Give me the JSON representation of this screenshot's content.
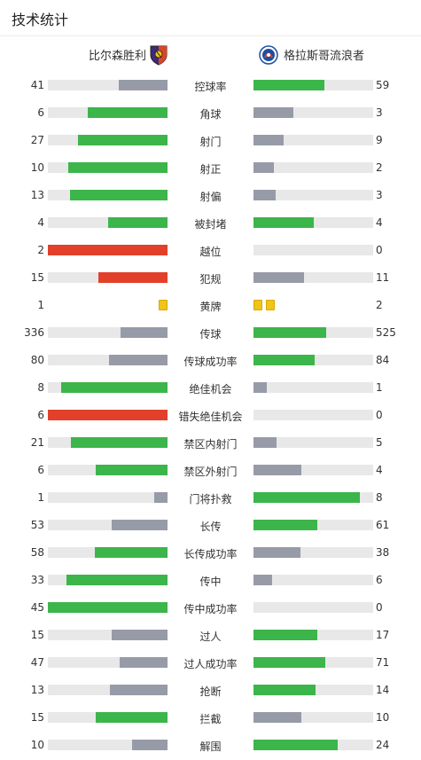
{
  "page": {
    "title": "技术统计"
  },
  "teams": {
    "home": "比尔森胜利",
    "away": "格拉斯哥流浪者"
  },
  "colors": {
    "winner": "#3cb54a",
    "loser": "#979ba8",
    "red": "#e2402a",
    "track": "#e8e8e8",
    "yellow": "#f0c419"
  },
  "stats": [
    {
      "label": "控球率",
      "home": 41,
      "away": 59,
      "home_color": "gray",
      "away_color": "green"
    },
    {
      "label": "角球",
      "home": 6,
      "away": 3,
      "home_color": "green",
      "away_color": "gray"
    },
    {
      "label": "射门",
      "home": 27,
      "away": 9,
      "home_color": "green",
      "away_color": "gray"
    },
    {
      "label": "射正",
      "home": 10,
      "away": 2,
      "home_color": "green",
      "away_color": "gray"
    },
    {
      "label": "射偏",
      "home": 13,
      "away": 3,
      "home_color": "green",
      "away_color": "gray"
    },
    {
      "label": "被封堵",
      "home": 4,
      "away": 4,
      "home_color": "green",
      "away_color": "green"
    },
    {
      "label": "越位",
      "home": 2,
      "away": 0,
      "home_color": "red",
      "away_color": "gray"
    },
    {
      "label": "犯规",
      "home": 15,
      "away": 11,
      "home_color": "red",
      "away_color": "gray"
    },
    {
      "label": "黄牌",
      "home": 1,
      "away": 2,
      "type": "cards"
    },
    {
      "label": "传球",
      "home": 336,
      "away": 525,
      "home_color": "gray",
      "away_color": "green"
    },
    {
      "label": "传球成功率",
      "home": 80,
      "away": 84,
      "home_color": "gray",
      "away_color": "green"
    },
    {
      "label": "绝佳机会",
      "home": 8,
      "away": 1,
      "home_color": "green",
      "away_color": "gray"
    },
    {
      "label": "错失绝佳机会",
      "home": 6,
      "away": 0,
      "home_color": "red",
      "away_color": "gray"
    },
    {
      "label": "禁区内射门",
      "home": 21,
      "away": 5,
      "home_color": "green",
      "away_color": "gray"
    },
    {
      "label": "禁区外射门",
      "home": 6,
      "away": 4,
      "home_color": "green",
      "away_color": "gray"
    },
    {
      "label": "门将扑救",
      "home": 1,
      "away": 8,
      "home_color": "gray",
      "away_color": "green"
    },
    {
      "label": "长传",
      "home": 53,
      "away": 61,
      "home_color": "gray",
      "away_color": "green"
    },
    {
      "label": "长传成功率",
      "home": 58,
      "away": 38,
      "home_color": "green",
      "away_color": "gray"
    },
    {
      "label": "传中",
      "home": 33,
      "away": 6,
      "home_color": "green",
      "away_color": "gray"
    },
    {
      "label": "传中成功率",
      "home": 45,
      "away": 0,
      "home_color": "green",
      "away_color": "gray"
    },
    {
      "label": "过人",
      "home": 15,
      "away": 17,
      "home_color": "gray",
      "away_color": "green"
    },
    {
      "label": "过人成功率",
      "home": 47,
      "away": 71,
      "home_color": "gray",
      "away_color": "green"
    },
    {
      "label": "抢断",
      "home": 13,
      "away": 14,
      "home_color": "gray",
      "away_color": "green"
    },
    {
      "label": "拦截",
      "home": 15,
      "away": 10,
      "home_color": "green",
      "away_color": "gray"
    },
    {
      "label": "解围",
      "home": 10,
      "away": 24,
      "home_color": "gray",
      "away_color": "green"
    }
  ]
}
